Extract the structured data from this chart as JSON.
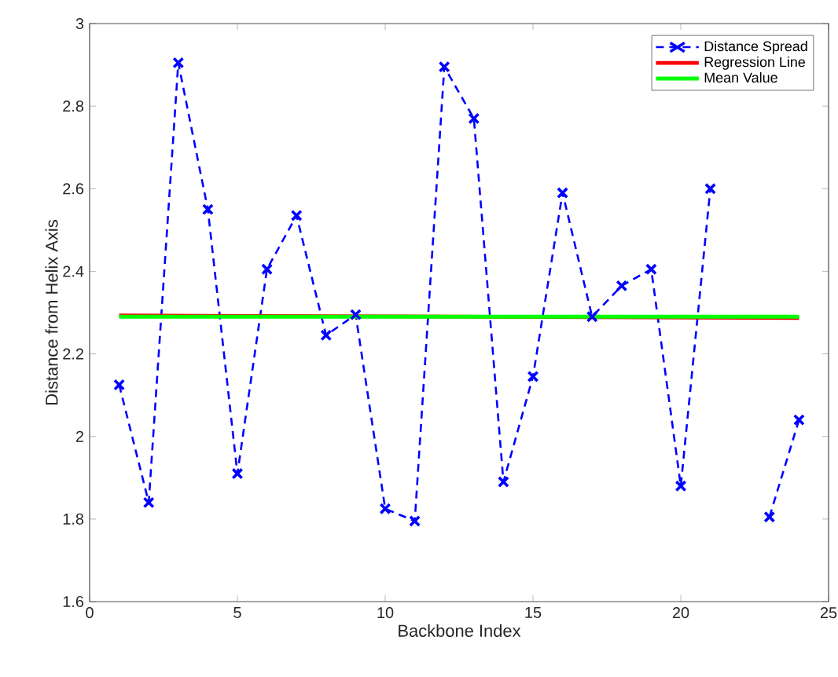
{
  "chart_data": {
    "type": "line",
    "xlabel": "Backbone Index",
    "ylabel": "Distance from Helix Axis",
    "xlim": [
      0,
      25
    ],
    "ylim": [
      1.6,
      3
    ],
    "xticks": [
      0,
      5,
      10,
      15,
      20,
      25
    ],
    "yticks": [
      1.6,
      1.8,
      2,
      2.2,
      2.4,
      2.6,
      2.8,
      3
    ],
    "legend": "top right",
    "grid": false,
    "series": [
      {
        "name": "Distance Spread",
        "color": "#0000ff",
        "marker": "cross",
        "line_style": "dashed",
        "x": [
          1,
          2,
          3,
          4,
          5,
          6,
          7,
          8,
          9,
          10,
          11,
          12,
          13,
          14,
          15,
          16,
          17,
          18,
          19,
          20,
          21,
          22,
          23,
          24
        ],
        "values": [
          2.125,
          1.84,
          2.905,
          2.55,
          1.91,
          2.405,
          2.535,
          2.245,
          2.295,
          1.825,
          1.795,
          2.895,
          2.77,
          1.89,
          2.145,
          2.59,
          2.29,
          2.365,
          2.405,
          1.88,
          2.6,
          null,
          1.805,
          2.04
        ]
      },
      {
        "name": "Regression Line",
        "color": "#ff0000",
        "marker": "none",
        "line_style": "solid",
        "x": [
          1,
          24
        ],
        "values": [
          2.293,
          2.287
        ]
      },
      {
        "name": "Mean Value",
        "color": "#00ff00",
        "marker": "none",
        "line_style": "solid",
        "x": [
          1,
          24
        ],
        "values": [
          2.29,
          2.29
        ]
      }
    ]
  }
}
